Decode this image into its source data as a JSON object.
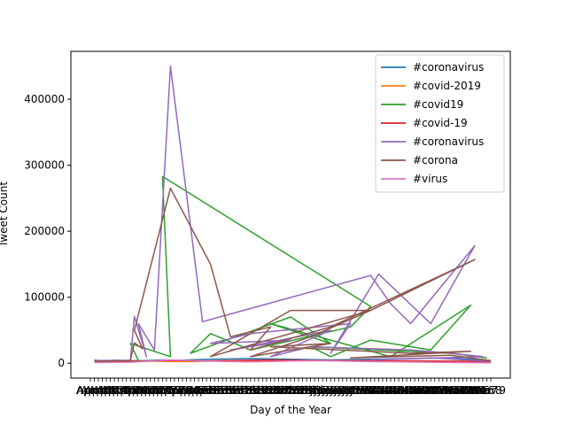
{
  "chart_data": {
    "type": "line",
    "title": "",
    "xlabel": "Day of the Year",
    "ylabel": "Tweet Count",
    "ylim": [
      -22500,
      472500
    ],
    "yticks": [
      0,
      100000,
      200000,
      300000,
      400000
    ],
    "ytick_labels": [
      "0",
      "100000",
      "200000",
      "300000",
      "400000"
    ],
    "x_categories": [
      "Apr 1",
      "Apr 10",
      "Apr 11",
      "Apr 12",
      "Apr 13",
      "Apr 14",
      "Apr 15",
      "Apr 16",
      "Apr 17",
      "Apr 18",
      "Apr 19",
      "Apr 2",
      "Apr 20",
      "Apr 21",
      "Apr 22",
      "Apr 23",
      "Apr 24",
      "Apr 25",
      "Apr 26",
      "Apr 27",
      "Apr 28",
      "Apr 29",
      "Apr 3",
      "Apr 30",
      "Apr 4",
      "Apr 5",
      "Apr 6",
      "Apr 7",
      "Apr 8",
      "Apr 9",
      "Feb 1",
      "Feb 10",
      "Feb 11",
      "Feb 12",
      "Feb 13",
      "Feb 14",
      "Feb 15",
      "Feb 16",
      "Feb 17",
      "Feb 18",
      "Feb 19",
      "Feb 2",
      "Feb 20",
      "Feb 21",
      "Feb 22",
      "Feb 23",
      "Feb 24",
      "Feb 25",
      "Feb 26",
      "Feb 27",
      "Feb 28",
      "Feb 29",
      "Feb 3",
      "Feb 4",
      "Feb 5",
      "Feb 6",
      "Feb 7",
      "Feb 8",
      "Feb 9",
      "Jan 21",
      "Jan 22",
      "Jan 23",
      "Jan 24",
      "Jan 25",
      "Jan 26",
      "Jan 27",
      "Jan 28",
      "Jan 29",
      "Jan 30",
      "Jan 31",
      "Mar 1",
      "Mar 10",
      "Mar 11",
      "Mar 12",
      "Mar 13",
      "Mar 14",
      "Mar 15",
      "Mar 16",
      "Mar 17",
      "Mar 18",
      "Mar 19",
      "Mar 2",
      "Mar 20",
      "Mar 21",
      "Mar 22",
      "Mar 23",
      "Mar 24",
      "Mar 25",
      "Mar 26",
      "Mar 27",
      "Mar 28",
      "Mar 29",
      "Mar 3",
      "Mar 30",
      "Mar 31",
      "Mar 4",
      "Mar 5",
      "Mar 6",
      "Mar 7",
      "Mar 8",
      "Mar 9"
    ],
    "legend_position": "top-right",
    "series": [
      {
        "name": "#coronavirus",
        "color": "#1f77b4",
        "points": [
          [
            1,
            5000
          ],
          [
            3,
            3000
          ],
          [
            6,
            4500
          ],
          [
            10,
            3500
          ],
          [
            14,
            4000
          ],
          [
            18,
            5000
          ],
          [
            22,
            4500
          ],
          [
            30,
            6000
          ],
          [
            40,
            7000
          ],
          [
            60,
            5000
          ],
          [
            75,
            6500
          ],
          [
            90,
            8000
          ],
          [
            100,
            4000
          ]
        ]
      },
      {
        "name": "#covid-2019",
        "color": "#ff7f0e",
        "points": [
          [
            1,
            2000
          ],
          [
            8,
            2500
          ],
          [
            16,
            3000
          ],
          [
            25,
            2500
          ],
          [
            35,
            4000
          ],
          [
            50,
            3500
          ],
          [
            65,
            4000
          ],
          [
            80,
            3000
          ],
          [
            95,
            2500
          ],
          [
            100,
            1500
          ]
        ]
      },
      {
        "name": "#covid19",
        "color": "#2ca02c",
        "points": [
          [
            1,
            3000
          ],
          [
            10,
            3500
          ],
          [
            12,
            4000
          ],
          [
            10,
            30000
          ],
          [
            20,
            10000
          ],
          [
            18,
            283000
          ],
          [
            70,
            86000
          ],
          [
            65,
            55000
          ],
          [
            40,
            20000
          ],
          [
            30,
            45000
          ],
          [
            25,
            15000
          ],
          [
            50,
            70000
          ],
          [
            60,
            30000
          ],
          [
            45,
            60000
          ],
          [
            75,
            10000
          ],
          [
            95,
            88000
          ],
          [
            85,
            20000
          ],
          [
            70,
            35000
          ],
          [
            60,
            10000
          ],
          [
            55,
            25000
          ],
          [
            90,
            15000
          ],
          [
            99,
            8000
          ]
        ]
      },
      {
        "name": "#covid-19",
        "color": "#d62728",
        "points": [
          [
            1,
            2500
          ],
          [
            12,
            3000
          ],
          [
            20,
            4000
          ],
          [
            30,
            3500
          ],
          [
            45,
            5000
          ],
          [
            60,
            4000
          ],
          [
            80,
            3500
          ],
          [
            95,
            3000
          ],
          [
            100,
            2000
          ]
        ]
      },
      {
        "name": "#coronavirus",
        "color": "#9467bd",
        "points": [
          [
            1,
            4000
          ],
          [
            10,
            4500
          ],
          [
            11,
            71000
          ],
          [
            14,
            10000
          ],
          [
            12,
            60000
          ],
          [
            16,
            20000
          ],
          [
            20,
            450000
          ],
          [
            28,
            63000
          ],
          [
            70,
            133000
          ],
          [
            75,
            90000
          ],
          [
            80,
            60000
          ],
          [
            96,
            178000
          ],
          [
            85,
            60000
          ],
          [
            72,
            135000
          ],
          [
            60,
            15000
          ],
          [
            65,
            60000
          ],
          [
            40,
            45000
          ],
          [
            30,
            30000
          ],
          [
            50,
            35000
          ],
          [
            35,
            20000
          ],
          [
            60,
            50000
          ],
          [
            45,
            10000
          ],
          [
            55,
            25000
          ],
          [
            80,
            20000
          ],
          [
            90,
            15000
          ],
          [
            98,
            10000
          ],
          [
            70,
            5000
          ],
          [
            85,
            8000
          ],
          [
            100,
            3000
          ]
        ]
      },
      {
        "name": "#corona",
        "color": "#8c564b",
        "points": [
          [
            1,
            3000
          ],
          [
            10,
            4000
          ],
          [
            11,
            31000
          ],
          [
            13,
            22000
          ],
          [
            11,
            50000
          ],
          [
            20,
            265000
          ],
          [
            30,
            150000
          ],
          [
            35,
            40000
          ],
          [
            45,
            55000
          ],
          [
            40,
            20000
          ],
          [
            60,
            55000
          ],
          [
            96,
            157000
          ],
          [
            70,
            80000
          ],
          [
            30,
            10000
          ],
          [
            50,
            80000
          ],
          [
            70,
            80000
          ],
          [
            55,
            40000
          ],
          [
            40,
            10000
          ],
          [
            60,
            30000
          ],
          [
            45,
            25000
          ],
          [
            80,
            15000
          ],
          [
            95,
            18000
          ],
          [
            65,
            8000
          ],
          [
            90,
            12000
          ],
          [
            100,
            4000
          ]
        ]
      },
      {
        "name": "#virus",
        "color": "#e377c2",
        "points": [
          [
            1,
            1000
          ],
          [
            10,
            1500
          ],
          [
            20,
            5000
          ],
          [
            30,
            3000
          ],
          [
            40,
            2000
          ],
          [
            55,
            4000
          ],
          [
            70,
            2500
          ],
          [
            85,
            1500
          ],
          [
            100,
            500
          ]
        ]
      }
    ]
  }
}
